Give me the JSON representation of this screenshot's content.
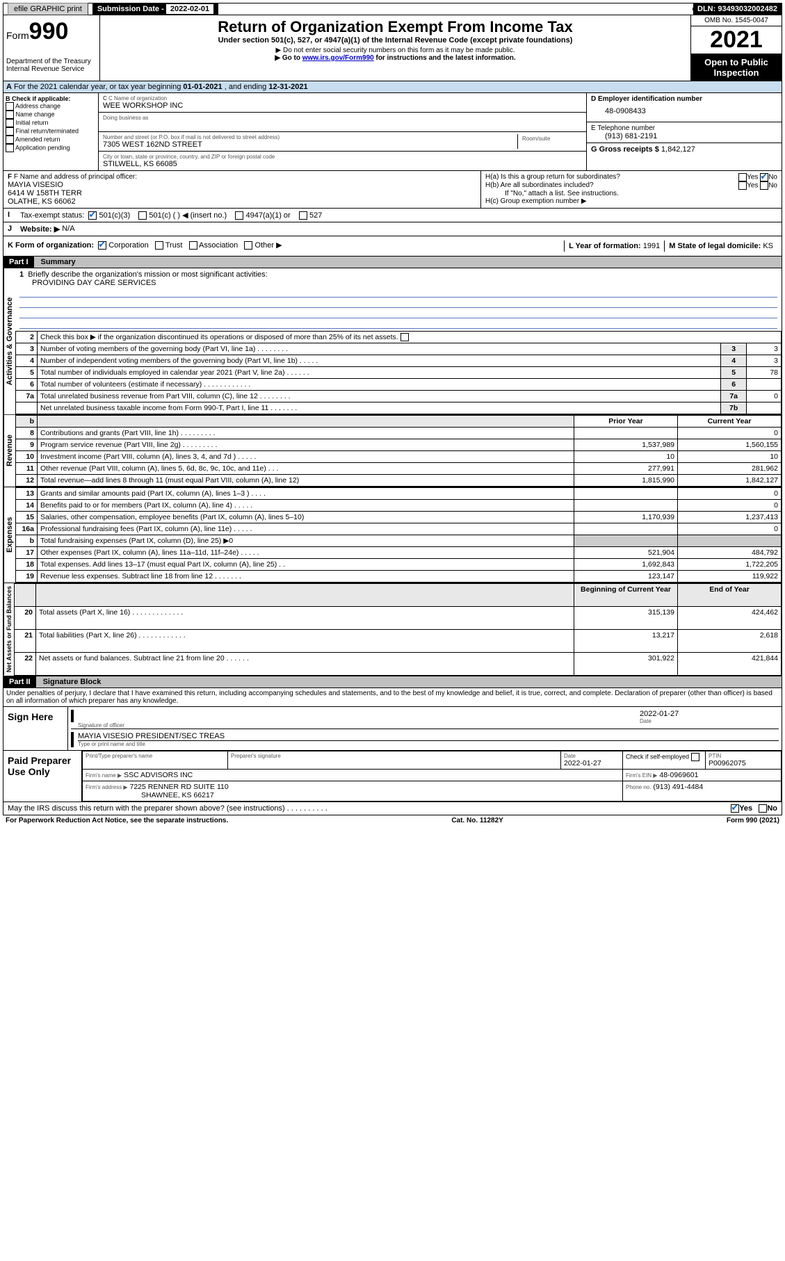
{
  "topbar": {
    "efile": "efile GRAPHIC print",
    "sub_label": "Submission Date - ",
    "sub_date": "2022-02-01",
    "dln": "DLN: 93493032002482"
  },
  "header": {
    "form_label": "Form",
    "form_number": "990",
    "dept": "Department of the Treasury\nInternal Revenue Service",
    "title": "Return of Organization Exempt From Income Tax",
    "subtitle": "Under section 501(c), 527, or 4947(a)(1) of the Internal Revenue Code (except private foundations)",
    "note1": "▶ Do not enter social security numbers on this form as it may be made public.",
    "note2_prefix": "▶ Go to ",
    "note2_link": "www.irs.gov/Form990",
    "note2_suffix": " for instructions and the latest information.",
    "omb": "OMB No. 1545-0047",
    "year": "2021",
    "open": "Open to Public Inspection"
  },
  "period": {
    "line": "For the 2021 calendar year, or tax year beginning ",
    "begin": "01-01-2021",
    "mid": " , and ending ",
    "end": "12-31-2021"
  },
  "boxB": {
    "title": "B Check if applicable:",
    "items": [
      "Address change",
      "Name change",
      "Initial return",
      "Final return/terminated",
      "Amended return",
      "Application pending"
    ]
  },
  "boxC": {
    "name_label": "C Name of organization",
    "name": "WEE WORKSHOP INC",
    "dba_label": "Doing business as",
    "addr_label": "Number and street (or P.O. box if mail is not delivered to street address)",
    "room_label": "Room/suite",
    "addr": "7305 WEST 162ND STREET",
    "city_label": "City or town, state or province, country, and ZIP or foreign postal code",
    "city": "STILWELL, KS  66085"
  },
  "boxD": {
    "label": "D Employer identification number",
    "value": "48-0908433"
  },
  "boxE": {
    "label": "E Telephone number",
    "value": "(913) 681-2191"
  },
  "boxG": {
    "label": "G Gross receipts $",
    "value": "1,842,127"
  },
  "boxF": {
    "label": "F Name and address of principal officer:",
    "name": "MAYIA VISESIO",
    "addr1": "6414 W 158TH TERR",
    "addr2": "OLATHE, KS  66062"
  },
  "boxH": {
    "ha": "H(a)  Is this a group return for subordinates?",
    "hb": "H(b)  Are all subordinates included?",
    "hint": "If \"No,\" attach a list. See instructions.",
    "hc": "H(c)  Group exemption number ▶",
    "yes": "Yes",
    "no": "No"
  },
  "boxI": {
    "label": "Tax-exempt status:",
    "opts": [
      "501(c)(3)",
      "501(c) (  ) ◀ (insert no.)",
      "4947(a)(1) or",
      "527"
    ]
  },
  "boxJ": {
    "label": "Website: ▶",
    "value": "N/A"
  },
  "boxK": {
    "label": "K Form of organization:",
    "opts": [
      "Corporation",
      "Trust",
      "Association",
      "Other ▶"
    ]
  },
  "boxL": {
    "label": "L Year of formation:",
    "value": "1991"
  },
  "boxM": {
    "label": "M State of legal domicile:",
    "value": "KS"
  },
  "parts": {
    "p1": "Part I",
    "p1_title": "Summary",
    "p2": "Part II",
    "p2_title": "Signature Block"
  },
  "summary": {
    "line1": "Briefly describe the organization's mission or most significant activities:",
    "mission": "PROVIDING DAY CARE SERVICES",
    "line2": "Check this box ▶       if the organization discontinued its operations or disposed of more than 25% of its net assets.",
    "line3": "Number of voting members of the governing body (Part VI, line 1a)   .    .    .    .    .    .    .    .",
    "line4": "Number of independent voting members of the governing body (Part VI, line 1b)   .    .    .    .    .",
    "line5": "Total number of individuals employed in calendar year 2021 (Part V, line 2a)   .    .    .    .    .    .",
    "line6": "Total number of volunteers (estimate if necessary)   .    .    .    .    .    .    .    .    .    .    .    .",
    "line7a": "Total unrelated business revenue from Part VIII, column (C), line 12   .    .    .    .    .    .    .    .",
    "line7b": "Net unrelated business taxable income from Form 990-T, Part I, line 11   .    .    .    .    .    .    .",
    "vals": {
      "3": "3",
      "4": "3",
      "5": "78",
      "6": "",
      "7a": "0",
      "7b": ""
    },
    "col_prev": "Prior Year",
    "col_curr": "Current Year",
    "col_begin": "Beginning of Current Year",
    "col_end": "End of Year",
    "rows_rev": [
      {
        "n": "8",
        "d": "Contributions and grants (Part VIII, line 1h)   .    .    .    .    .    .    .    .    .",
        "p": "",
        "c": "0"
      },
      {
        "n": "9",
        "d": "Program service revenue (Part VIII, line 2g)   .    .    .    .    .    .    .    .    .",
        "p": "1,537,989",
        "c": "1,560,155"
      },
      {
        "n": "10",
        "d": "Investment income (Part VIII, column (A), lines 3, 4, and 7d )   .    .    .    .    .",
        "p": "10",
        "c": "10"
      },
      {
        "n": "11",
        "d": "Other revenue (Part VIII, column (A), lines 5, 6d, 8c, 9c, 10c, and 11e)   .    .    .",
        "p": "277,991",
        "c": "281,962"
      },
      {
        "n": "12",
        "d": "Total revenue—add lines 8 through 11 (must equal Part VIII, column (A), line 12)",
        "p": "1,815,990",
        "c": "1,842,127"
      }
    ],
    "rows_exp": [
      {
        "n": "13",
        "d": "Grants and similar amounts paid (Part IX, column (A), lines 1–3 )   .    .    .    .",
        "p": "",
        "c": "0"
      },
      {
        "n": "14",
        "d": "Benefits paid to or for members (Part IX, column (A), line 4)   .    .    .    .    .",
        "p": "",
        "c": "0"
      },
      {
        "n": "15",
        "d": "Salaries, other compensation, employee benefits (Part IX, column (A), lines 5–10)",
        "p": "1,170,939",
        "c": "1,237,413"
      },
      {
        "n": "16a",
        "d": "Professional fundraising fees (Part IX, column (A), line 11e)   .    .    .    .    .",
        "p": "",
        "c": "0"
      },
      {
        "n": "b",
        "d": "Total fundraising expenses (Part IX, column (D), line 25) ▶0",
        "p": "—hide—",
        "c": "—hide—"
      },
      {
        "n": "17",
        "d": "Other expenses (Part IX, column (A), lines 11a–11d, 11f–24e)   .    .    .    .    .",
        "p": "521,904",
        "c": "484,792"
      },
      {
        "n": "18",
        "d": "Total expenses. Add lines 13–17 (must equal Part IX, column (A), line 25)   .    .",
        "p": "1,692,843",
        "c": "1,722,205"
      },
      {
        "n": "19",
        "d": "Revenue less expenses. Subtract line 18 from line 12   .    .    .    .    .    .    .",
        "p": "123,147",
        "c": "119,922"
      }
    ],
    "rows_net": [
      {
        "n": "20",
        "d": "Total assets (Part X, line 16)   .    .    .    .    .    .    .    .    .    .    .    .    .",
        "p": "315,139",
        "c": "424,462"
      },
      {
        "n": "21",
        "d": "Total liabilities (Part X, line 26)   .    .    .    .    .    .    .    .    .    .    .    .",
        "p": "13,217",
        "c": "2,618"
      },
      {
        "n": "22",
        "d": "Net assets or fund balances. Subtract line 21 from line 20   .    .    .    .    .    .",
        "p": "301,922",
        "c": "421,844"
      }
    ],
    "tabs": {
      "gov": "Activities & Governance",
      "rev": "Revenue",
      "exp": "Expenses",
      "net": "Net Assets or Fund Balances"
    }
  },
  "penalty": "Under penalties of perjury, I declare that I have examined this return, including accompanying schedules and statements, and to the best of my knowledge and belief, it is true, correct, and complete. Declaration of preparer (other than officer) is based on all information of which preparer has any knowledge.",
  "sign": {
    "here": "Sign Here",
    "sig_label": "Signature of officer",
    "date_label": "Date",
    "date": "2022-01-27",
    "name": "MAYIA VISESIO  PRESIDENT/SEC TREAS",
    "name_label": "Type or print name and title"
  },
  "preparer": {
    "title": "Paid Preparer Use Only",
    "h1": "Print/Type preparer's name",
    "h2": "Preparer's signature",
    "h3": "Date",
    "h3v": "2022-01-27",
    "h4": "Check      if self-employed",
    "h5": "PTIN",
    "h5v": "P00962075",
    "firm_l": "Firm's name    ▶",
    "firm": "SSC ADVISORS INC",
    "ein_l": "Firm's EIN ▶",
    "ein": "48-0969601",
    "addr_l": "Firm's address ▶",
    "addr1": "7225 RENNER RD SUITE 110",
    "addr2": "SHAWNEE, KS  66217",
    "phone_l": "Phone no.",
    "phone": "(913) 491-4484"
  },
  "footer": {
    "discuss": "May the IRS discuss this return with the preparer shown above? (see instructions)   .    .    .    .    .    .    .    .    .    .",
    "yes": "Yes",
    "no": "No",
    "pra": "For Paperwork Reduction Act Notice, see the separate instructions.",
    "cat": "Cat. No. 11282Y",
    "form": "Form 990 (2021)"
  },
  "colors": {
    "bg": "#ffffff",
    "section_blue": "#c8ddf0",
    "grey": "#c0c0c0",
    "link": "#0000cc",
    "check": "#1067c2",
    "rule": "#5577bb"
  }
}
